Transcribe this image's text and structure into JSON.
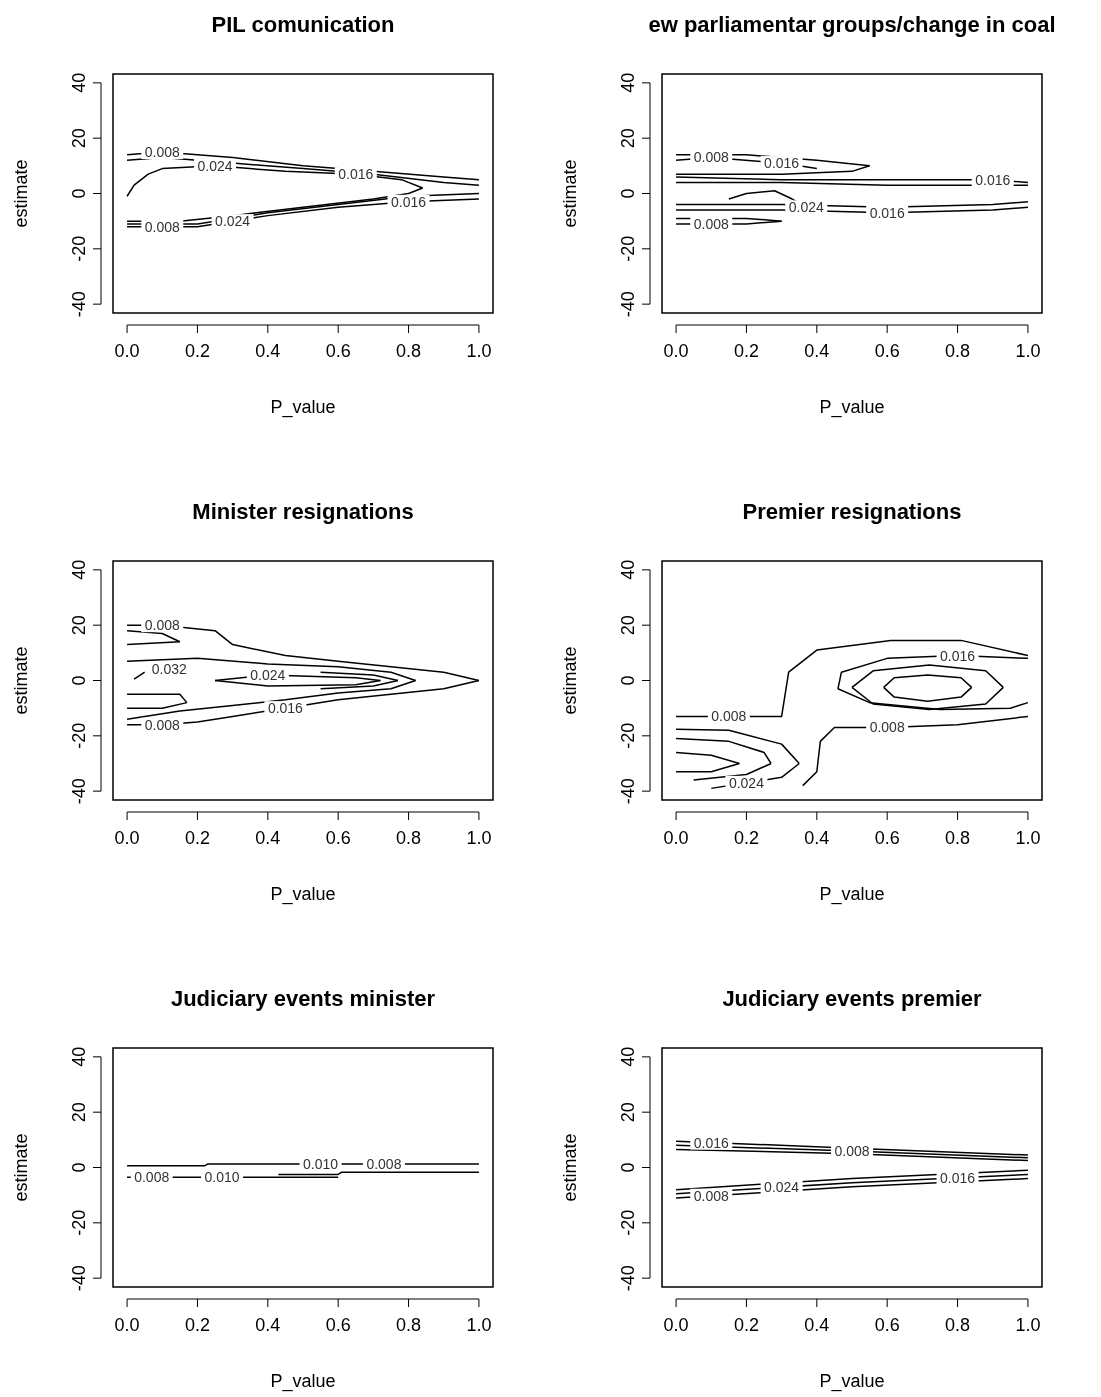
{
  "chart_data": [
    {
      "type": "line",
      "title": "PIL comunication",
      "xlabel": "P_value",
      "ylabel": "estimate",
      "xlim": [
        -0.04,
        1.04
      ],
      "ylim": [
        -43.2,
        43.2
      ],
      "xticks": [
        {
          "value": 0,
          "label": "0.0"
        },
        {
          "value": 0.2,
          "label": "0.2"
        },
        {
          "value": 0.4,
          "label": "0.4"
        },
        {
          "value": 0.6,
          "label": "0.6"
        },
        {
          "value": 0.8,
          "label": "0.8"
        },
        {
          "value": 1,
          "label": "1.0"
        }
      ],
      "yticks": [
        -40,
        -20,
        0,
        20,
        40
      ],
      "series": [
        {
          "color": "#000000",
          "x": [
            0,
            0.1,
            0.3,
            0.5,
            0.7,
            0.9,
            1
          ],
          "values": [
            14,
            15,
            13,
            10,
            8,
            6,
            5
          ]
        },
        {
          "color": "#000000",
          "x": [
            0,
            0.1,
            0.3,
            0.5,
            0.7,
            0.9,
            1
          ],
          "values": [
            12,
            13,
            11,
            9,
            7,
            4,
            3
          ]
        },
        {
          "color": "#000000",
          "x": [
            0,
            0.02,
            0.06,
            0.1,
            0.25,
            0.45,
            0.65,
            0.78,
            0.84
          ],
          "values": [
            -1,
            3,
            7,
            9,
            10,
            8,
            7,
            5,
            2
          ]
        },
        {
          "color": "#000000",
          "x": [
            0,
            0.15,
            0.3,
            0.5,
            0.7,
            0.8,
            0.84
          ],
          "values": [
            -10,
            -10,
            -8,
            -5,
            -2,
            0,
            2
          ]
        },
        {
          "color": "#000000",
          "x": [
            0,
            0.1,
            0.2,
            0.3,
            0.4,
            0.6,
            0.8,
            1
          ],
          "values": [
            -12,
            -12,
            -12,
            -10,
            -8,
            -5,
            -3,
            -2
          ]
        },
        {
          "color": "#000000",
          "x": [
            0,
            0.2,
            0.4,
            0.6,
            0.8,
            1
          ],
          "values": [
            -11,
            -11,
            -7,
            -4,
            -1,
            0
          ]
        }
      ],
      "annotations": [
        {
          "text": "0.008",
          "x": 0.1,
          "y": 15
        },
        {
          "text": "0.024",
          "x": 0.25,
          "y": 10
        },
        {
          "text": "0.016",
          "x": 0.65,
          "y": 7
        },
        {
          "text": "0.016",
          "x": 0.8,
          "y": -3
        },
        {
          "text": "0.024",
          "x": 0.3,
          "y": -10
        },
        {
          "text": "0.008",
          "x": 0.1,
          "y": -12
        }
      ]
    },
    {
      "type": "line",
      "title": "ew parliamentar groups/change in coal",
      "xlabel": "P_value",
      "ylabel": "estimate",
      "xlim": [
        -0.04,
        1.04
      ],
      "ylim": [
        -43.2,
        43.2
      ],
      "xticks": [
        {
          "value": 0,
          "label": "0.0"
        },
        {
          "value": 0.2,
          "label": "0.2"
        },
        {
          "value": 0.4,
          "label": "0.4"
        },
        {
          "value": 0.6,
          "label": "0.6"
        },
        {
          "value": 0.8,
          "label": "0.8"
        },
        {
          "value": 1,
          "label": "1.0"
        }
      ],
      "yticks": [
        -40,
        -20,
        0,
        20,
        40
      ],
      "series": [
        {
          "color": "#000000",
          "x": [
            0,
            0.2,
            0.4,
            0.55
          ],
          "values": [
            14,
            14,
            12,
            10
          ]
        },
        {
          "color": "#000000",
          "x": [
            0,
            0.1,
            0.3,
            0.5,
            0.55
          ],
          "values": [
            7,
            7,
            7,
            8,
            10
          ]
        },
        {
          "color": "#000000",
          "x": [
            0,
            0.1,
            0.3,
            0.4
          ],
          "values": [
            12,
            13,
            11,
            9
          ]
        },
        {
          "color": "#000000",
          "x": [
            0,
            0.3,
            0.6,
            0.9,
            1
          ],
          "values": [
            6,
            5,
            5,
            5,
            4
          ]
        },
        {
          "color": "#000000",
          "x": [
            0,
            0.3,
            0.6,
            1
          ],
          "values": [
            4,
            4,
            3,
            3
          ]
        },
        {
          "color": "#000000",
          "x": [
            0,
            0.3,
            0.6,
            0.9,
            1
          ],
          "values": [
            -4,
            -4,
            -5,
            -4,
            -3
          ]
        },
        {
          "color": "#000000",
          "x": [
            0,
            0.3,
            0.6,
            0.9,
            1
          ],
          "values": [
            -6,
            -6,
            -7,
            -6,
            -5
          ]
        },
        {
          "color": "#000000",
          "x": [
            0,
            0.2,
            0.3
          ],
          "values": [
            -9,
            -9,
            -10
          ]
        },
        {
          "color": "#000000",
          "x": [
            0,
            0.1,
            0.2,
            0.3
          ],
          "values": [
            -11,
            -11,
            -11,
            -10
          ]
        },
        {
          "color": "#000000",
          "x": [
            0.15,
            0.2,
            0.28,
            0.33,
            0.37
          ],
          "values": [
            -2,
            0,
            1,
            -2,
            -5
          ]
        }
      ],
      "annotations": [
        {
          "text": "0.008",
          "x": 0.1,
          "y": 13
        },
        {
          "text": "0.016",
          "x": 0.3,
          "y": 11
        },
        {
          "text": "0.016",
          "x": 0.9,
          "y": 5
        },
        {
          "text": "0.024",
          "x": 0.37,
          "y": -5
        },
        {
          "text": "0.016",
          "x": 0.6,
          "y": -7
        },
        {
          "text": "0.008",
          "x": 0.1,
          "y": -11
        }
      ]
    },
    {
      "type": "line",
      "title": "Minister resignations",
      "xlabel": "P_value",
      "ylabel": "estimate",
      "xlim": [
        -0.04,
        1.04
      ],
      "ylim": [
        -43.2,
        43.2
      ],
      "xticks": [
        {
          "value": 0,
          "label": "0.0"
        },
        {
          "value": 0.2,
          "label": "0.2"
        },
        {
          "value": 0.4,
          "label": "0.4"
        },
        {
          "value": 0.6,
          "label": "0.6"
        },
        {
          "value": 0.8,
          "label": "0.8"
        },
        {
          "value": 1,
          "label": "1.0"
        }
      ],
      "yticks": [
        -40,
        -20,
        0,
        20,
        40
      ],
      "series": [
        {
          "color": "#000000",
          "x": [
            0,
            0.1,
            0.25,
            0.3,
            0.45,
            0.6,
            0.75,
            0.9,
            1
          ],
          "values": [
            20,
            20,
            18,
            13,
            9,
            7,
            5,
            3,
            0
          ]
        },
        {
          "color": "#000000",
          "x": [
            0,
            0.1,
            0.2,
            0.3,
            0.45,
            0.6,
            0.75,
            0.9,
            1
          ],
          "values": [
            -16,
            -16,
            -15,
            -13,
            -10,
            -7,
            -5,
            -3,
            0
          ]
        },
        {
          "color": "#000000",
          "x": [
            0,
            0.1,
            0.15
          ],
          "values": [
            18,
            17,
            14
          ]
        },
        {
          "color": "#000000",
          "x": [
            0,
            0.15
          ],
          "values": [
            13,
            14
          ]
        },
        {
          "color": "#000000",
          "x": [
            0,
            0.2,
            0.4,
            0.6,
            0.75,
            0.82
          ],
          "values": [
            7,
            8,
            6,
            5,
            3,
            0
          ]
        },
        {
          "color": "#000000",
          "x": [
            0,
            0.15,
            0.3,
            0.45,
            0.6,
            0.75,
            0.82
          ],
          "values": [
            -14,
            -11,
            -9,
            -7,
            -4.5,
            -3,
            0
          ]
        },
        {
          "color": "#000000",
          "x": [
            0.55,
            0.7,
            0.77
          ],
          "values": [
            3,
            2,
            0
          ]
        },
        {
          "color": "#000000",
          "x": [
            0.55,
            0.7,
            0.77
          ],
          "values": [
            -3,
            -2,
            0
          ]
        },
        {
          "color": "#000000",
          "x": [
            0.02,
            0.05
          ],
          "values": [
            0.5,
            3
          ]
        },
        {
          "color": "#000000",
          "x": [
            0,
            0.15,
            0.17
          ],
          "values": [
            -5,
            -5,
            -8
          ]
        },
        {
          "color": "#000000",
          "x": [
            0,
            0.1,
            0.17
          ],
          "values": [
            -10,
            -10,
            -8
          ]
        },
        {
          "color": "#000000",
          "x": [
            0.25,
            0.4,
            0.65,
            0.72
          ],
          "values": [
            0,
            2,
            1,
            0
          ]
        },
        {
          "color": "#000000",
          "x": [
            0.25,
            0.4,
            0.65,
            0.72
          ],
          "values": [
            0,
            -2,
            -1.5,
            0
          ]
        }
      ],
      "annotations": [
        {
          "text": "0.008",
          "x": 0.1,
          "y": 20
        },
        {
          "text": "0.032",
          "x": 0.12,
          "y": 4
        },
        {
          "text": "0.024",
          "x": 0.4,
          "y": 2
        },
        {
          "text": "0.016",
          "x": 0.45,
          "y": -10
        },
        {
          "text": "0.008",
          "x": 0.1,
          "y": -16
        }
      ]
    },
    {
      "type": "line",
      "title": "Premier resignations",
      "xlabel": "P_value",
      "ylabel": "estimate",
      "xlim": [
        -0.04,
        1.04
      ],
      "ylim": [
        -43.2,
        43.2
      ],
      "xticks": [
        {
          "value": 0,
          "label": "0.0"
        },
        {
          "value": 0.2,
          "label": "0.2"
        },
        {
          "value": 0.4,
          "label": "0.4"
        },
        {
          "value": 0.6,
          "label": "0.6"
        },
        {
          "value": 0.8,
          "label": "0.8"
        },
        {
          "value": 1,
          "label": "1.0"
        }
      ],
      "yticks": [
        -40,
        -20,
        0,
        20,
        40
      ],
      "series": [
        {
          "color": "#000000",
          "x": [
            0,
            0.15,
            0.3,
            0.32,
            0.4,
            0.61,
            0.81,
            1
          ],
          "values": [
            -13,
            -13,
            -13,
            3,
            11,
            14.5,
            14.5,
            9
          ]
        },
        {
          "color": "#000000",
          "x": [
            0.36,
            0.4,
            0.41,
            0.45,
            0.6,
            0.8,
            1
          ],
          "values": [
            -38,
            -33,
            -22,
            -17,
            -17,
            -16,
            -13
          ]
        },
        {
          "color": "#000000",
          "x": [
            0.46,
            0.47,
            0.6,
            0.8,
            1
          ],
          "values": [
            -3,
            3,
            8,
            9,
            8
          ]
        },
        {
          "color": "#000000",
          "x": [
            0.46,
            0.55,
            0.75,
            0.95,
            1
          ],
          "values": [
            -3,
            -8,
            -10.5,
            -10,
            -8
          ]
        },
        {
          "color": "#000000",
          "x": [
            0.5,
            0.56,
            0.72,
            0.88,
            0.93
          ],
          "values": [
            -2.5,
            3.5,
            5.6,
            3.5,
            -2.5
          ]
        },
        {
          "color": "#000000",
          "x": [
            0.5,
            0.56,
            0.72,
            0.88,
            0.93
          ],
          "values": [
            -2.5,
            -8.5,
            -10.5,
            -8.5,
            -2.5
          ]
        },
        {
          "color": "#000000",
          "x": [
            0.59,
            0.62,
            0.715,
            0.81,
            0.84
          ],
          "values": [
            -2.5,
            1,
            2,
            1,
            -2.5
          ]
        },
        {
          "color": "#000000",
          "x": [
            0.59,
            0.62,
            0.715,
            0.81,
            0.84
          ],
          "values": [
            -2.5,
            -6,
            -7.5,
            -6,
            -2.5
          ]
        },
        {
          "color": "#000000",
          "x": [
            0,
            0.15,
            0.3,
            0.35
          ],
          "values": [
            -17.6,
            -18,
            -23,
            -30
          ]
        },
        {
          "color": "#000000",
          "x": [
            0.1,
            0.3,
            0.35
          ],
          "values": [
            -39,
            -35,
            -30
          ]
        },
        {
          "color": "#000000",
          "x": [
            0,
            0.15,
            0.25,
            0.27
          ],
          "values": [
            -21,
            -22,
            -26,
            -30
          ]
        },
        {
          "color": "#000000",
          "x": [
            0.05,
            0.2,
            0.27
          ],
          "values": [
            -36,
            -34,
            -30
          ]
        },
        {
          "color": "#000000",
          "x": [
            0,
            0.1,
            0.18
          ],
          "values": [
            -26,
            -27,
            -30
          ]
        },
        {
          "color": "#000000",
          "x": [
            0,
            0.1,
            0.18
          ],
          "values": [
            -33,
            -33,
            -30
          ]
        }
      ],
      "annotations": [
        {
          "text": "0.008",
          "x": 0.15,
          "y": -13
        },
        {
          "text": "0.024",
          "x": 0.2,
          "y": -37
        },
        {
          "text": "0.016",
          "x": 0.8,
          "y": 9
        },
        {
          "text": "0.008",
          "x": 0.6,
          "y": -17
        }
      ]
    },
    {
      "type": "line",
      "title": "Judiciary events minister",
      "xlabel": "P_value",
      "ylabel": "estimate",
      "xlim": [
        -0.04,
        1.04
      ],
      "ylim": [
        -43.2,
        43.2
      ],
      "xticks": [
        {
          "value": 0,
          "label": "0.0"
        },
        {
          "value": 0.2,
          "label": "0.2"
        },
        {
          "value": 0.4,
          "label": "0.4"
        },
        {
          "value": 0.6,
          "label": "0.6"
        },
        {
          "value": 0.8,
          "label": "0.8"
        },
        {
          "value": 1,
          "label": "1.0"
        }
      ],
      "yticks": [
        -40,
        -20,
        0,
        20,
        40
      ],
      "series": [
        {
          "color": "#000000",
          "x": [
            0,
            0.22,
            0.23,
            0.55,
            0.73,
            1
          ],
          "values": [
            0.6,
            0.6,
            1.3,
            1.3,
            1.3,
            1.3
          ]
        },
        {
          "color": "#000000",
          "x": [
            0,
            0.07,
            0.27,
            0.6
          ],
          "values": [
            -3.5,
            -3.5,
            -3.5,
            -3.5
          ]
        },
        {
          "color": "#000000",
          "x": [
            0.43,
            0.6,
            0.61,
            1
          ],
          "values": [
            -2.5,
            -2.5,
            -1.7,
            -1.7
          ]
        }
      ],
      "annotations": [
        {
          "text": "0.008",
          "x": 0.07,
          "y": -3.5
        },
        {
          "text": "0.010",
          "x": 0.27,
          "y": -3.5
        },
        {
          "text": "0.010",
          "x": 0.55,
          "y": 1.3
        },
        {
          "text": "0.008",
          "x": 0.73,
          "y": 1.3
        }
      ]
    },
    {
      "type": "line",
      "title": "Judiciary events premier",
      "xlabel": "P_value",
      "ylabel": "estimate",
      "xlim": [
        -0.04,
        1.04
      ],
      "ylim": [
        -43.2,
        43.2
      ],
      "xticks": [
        {
          "value": 0,
          "label": "0.0"
        },
        {
          "value": 0.2,
          "label": "0.2"
        },
        {
          "value": 0.4,
          "label": "0.4"
        },
        {
          "value": 0.6,
          "label": "0.6"
        },
        {
          "value": 0.8,
          "label": "0.8"
        },
        {
          "value": 1,
          "label": "1.0"
        }
      ],
      "yticks": [
        -40,
        -20,
        0,
        20,
        40
      ],
      "series": [
        {
          "color": "#000000",
          "x": [
            0,
            0.5,
            1
          ],
          "values": [
            9.5,
            7,
            4.5
          ]
        },
        {
          "color": "#000000",
          "x": [
            0,
            0.5,
            1
          ],
          "values": [
            8,
            6,
            3.5
          ]
        },
        {
          "color": "#000000",
          "x": [
            0,
            0.5,
            1
          ],
          "values": [
            6.5,
            5,
            2.5
          ]
        },
        {
          "color": "#000000",
          "x": [
            0,
            0.5,
            1
          ],
          "values": [
            -8,
            -4,
            -1
          ]
        },
        {
          "color": "#000000",
          "x": [
            0,
            0.5,
            1
          ],
          "values": [
            -9.5,
            -5.5,
            -2.5
          ]
        },
        {
          "color": "#000000",
          "x": [
            0,
            0.5,
            1
          ],
          "values": [
            -11,
            -7,
            -4
          ]
        }
      ],
      "annotations": [
        {
          "text": "0.016",
          "x": 0.1,
          "y": 9
        },
        {
          "text": "0.008",
          "x": 0.5,
          "y": 6
        },
        {
          "text": "0.024",
          "x": 0.3,
          "y": -7.1
        },
        {
          "text": "0.016",
          "x": 0.8,
          "y": -3.7
        },
        {
          "text": "0.008",
          "x": 0.1,
          "y": -10.2
        }
      ]
    }
  ]
}
